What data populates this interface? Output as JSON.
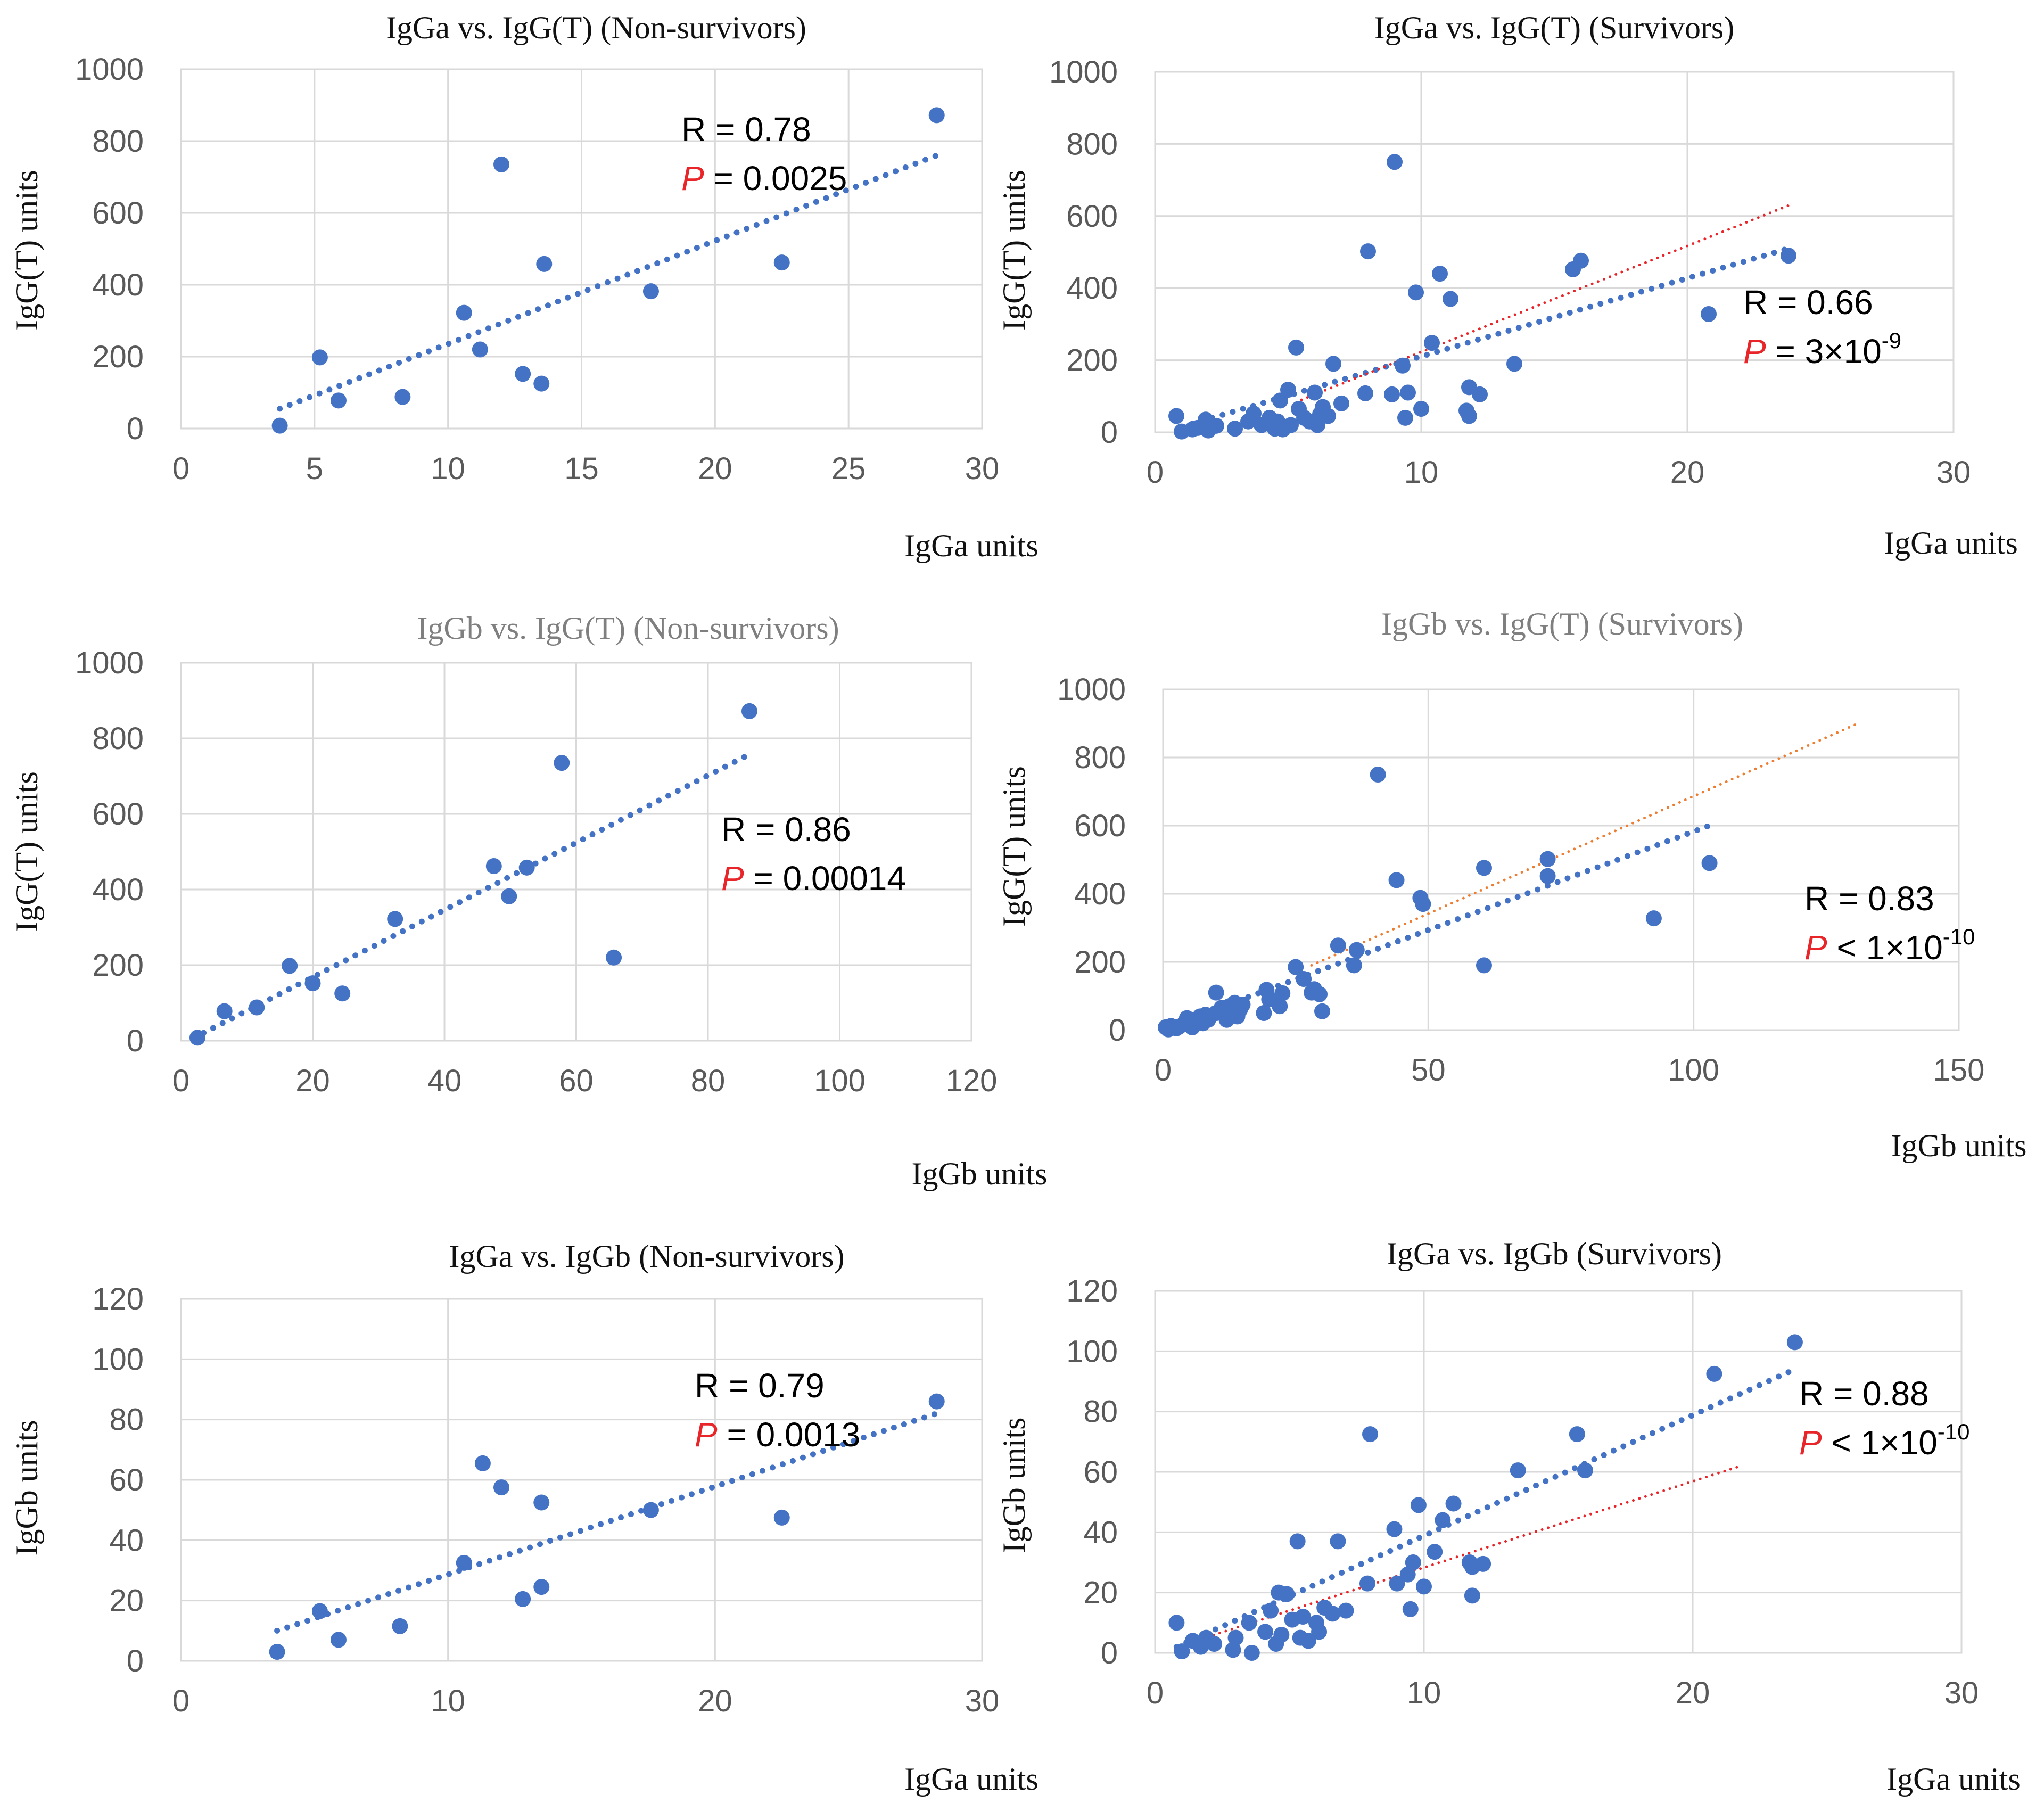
{
  "colors": {
    "point": "#4472C4",
    "trend": "#4472C4",
    "ref_red": "#E8262A",
    "ref_orange": "#ED7D31",
    "grid": "#D9D9D9",
    "tick_text": "#595959",
    "title_text": "#111111",
    "title_gray": "#7F7F7F",
    "p_red": "#E8262A"
  },
  "chart_data": [
    {
      "type": "scatter",
      "title": "IgGa vs. IgG(T) (Non-survivors)",
      "title_style": "dark",
      "xlabel": "IgGa units",
      "ylabel": "IgG(T) units",
      "xlim": [
        0,
        30
      ],
      "ylim": [
        0,
        1000
      ],
      "xticks": [
        0,
        5,
        10,
        15,
        20,
        25,
        30
      ],
      "yticks": [
        0,
        200,
        400,
        600,
        800,
        1000
      ],
      "points": [
        [
          3.7,
          8
        ],
        [
          5.2,
          198
        ],
        [
          5.9,
          78
        ],
        [
          8.3,
          88
        ],
        [
          10.6,
          322
        ],
        [
          11.2,
          220
        ],
        [
          12.0,
          735
        ],
        [
          12.8,
          152
        ],
        [
          13.5,
          125
        ],
        [
          13.6,
          458
        ],
        [
          17.6,
          382
        ],
        [
          22.5,
          462
        ],
        [
          28.3,
          872
        ]
      ],
      "trendlines": [
        {
          "kind": "fit",
          "x": [
            3.7,
            28.3
          ],
          "y": [
            55,
            760
          ],
          "color": "trend"
        }
      ],
      "annotation": {
        "r": "R = 0.78",
        "p_symbol": "P",
        "p_text": " = 0.0025",
        "p_exp": "",
        "placement": "upper-middle"
      }
    },
    {
      "type": "scatter",
      "title": "IgGa vs. IgG(T) (Survivors)",
      "title_style": "dark",
      "xlabel": "IgGa units",
      "ylabel": "IgG(T) units",
      "xlim": [
        0,
        30
      ],
      "ylim": [
        0,
        1000
      ],
      "xticks": [
        0,
        10,
        20,
        30
      ],
      "yticks": [
        0,
        200,
        400,
        600,
        800,
        1000
      ],
      "points": [
        [
          0.8,
          45
        ],
        [
          1.0,
          2
        ],
        [
          1.4,
          8
        ],
        [
          1.6,
          12
        ],
        [
          1.9,
          35
        ],
        [
          2.0,
          5
        ],
        [
          2.3,
          18
        ],
        [
          3.0,
          10
        ],
        [
          3.5,
          30
        ],
        [
          3.7,
          52
        ],
        [
          4.0,
          20
        ],
        [
          4.3,
          40
        ],
        [
          4.5,
          10
        ],
        [
          4.6,
          30
        ],
        [
          4.7,
          88
        ],
        [
          4.8,
          8
        ],
        [
          5.0,
          118
        ],
        [
          5.1,
          20
        ],
        [
          5.3,
          235
        ],
        [
          5.4,
          65
        ],
        [
          5.6,
          40
        ],
        [
          5.8,
          30
        ],
        [
          6.0,
          110
        ],
        [
          6.1,
          20
        ],
        [
          6.2,
          50
        ],
        [
          6.3,
          70
        ],
        [
          6.5,
          45
        ],
        [
          6.7,
          190
        ],
        [
          7.0,
          80
        ],
        [
          7.9,
          108
        ],
        [
          8.0,
          502
        ],
        [
          8.9,
          105
        ],
        [
          9.0,
          750
        ],
        [
          9.3,
          185
        ],
        [
          9.4,
          40
        ],
        [
          9.5,
          110
        ],
        [
          9.8,
          388
        ],
        [
          10.0,
          65
        ],
        [
          10.4,
          248
        ],
        [
          10.7,
          440
        ],
        [
          11.1,
          370
        ],
        [
          11.7,
          60
        ],
        [
          11.8,
          125
        ],
        [
          11.8,
          45
        ],
        [
          12.2,
          105
        ],
        [
          13.5,
          190
        ],
        [
          15.7,
          452
        ],
        [
          16.0,
          476
        ],
        [
          20.8,
          328
        ],
        [
          23.8,
          490
        ]
      ],
      "trendlines": [
        {
          "kind": "fit",
          "x": [
            1.0,
            23.8
          ],
          "y": [
            15,
            510
          ],
          "color": "trend"
        },
        {
          "kind": "reference",
          "x": [
            5.5,
            24.0
          ],
          "y": [
            90,
            635
          ],
          "color": "ref_red"
        }
      ],
      "annotation": {
        "r": "R = 0.66",
        "p_symbol": "P",
        "p_text": " = 3×10",
        "p_exp": "-9",
        "placement": "right"
      }
    },
    {
      "type": "scatter",
      "title": "IgGb vs. IgG(T) (Non-survivors)",
      "title_style": "gray",
      "xlabel": "IgGb units",
      "ylabel": "IgG(T) units",
      "xlim": [
        0,
        120
      ],
      "ylim": [
        0,
        1000
      ],
      "xticks": [
        0,
        20,
        40,
        60,
        80,
        100,
        120
      ],
      "yticks": [
        0,
        200,
        400,
        600,
        800,
        1000
      ],
      "points": [
        [
          2.5,
          8
        ],
        [
          6.6,
          78
        ],
        [
          11.5,
          88
        ],
        [
          16.5,
          198
        ],
        [
          20.0,
          152
        ],
        [
          24.5,
          125
        ],
        [
          32.5,
          322
        ],
        [
          47.5,
          462
        ],
        [
          49.8,
          382
        ],
        [
          52.5,
          458
        ],
        [
          57.8,
          735
        ],
        [
          65.7,
          220
        ],
        [
          86.3,
          872
        ]
      ],
      "trendlines": [
        {
          "kind": "fit",
          "x": [
            2.0,
            86.0
          ],
          "y": [
            8,
            755
          ],
          "color": "trend"
        }
      ],
      "annotation": {
        "r": "R = 0.86",
        "p_symbol": "P",
        "p_text": " = 0.00014",
        "p_exp": "",
        "placement": "right"
      }
    },
    {
      "type": "scatter",
      "title": "IgGb vs. IgG(T) (Survivors)",
      "title_style": "gray",
      "xlabel": "IgGb units",
      "ylabel": "IgG(T) units",
      "xlim": [
        0,
        150
      ],
      "ylim": [
        0,
        1000
      ],
      "xticks": [
        0,
        50,
        100,
        150
      ],
      "yticks": [
        0,
        200,
        400,
        600,
        800,
        1000
      ],
      "points": [
        [
          0.5,
          8
        ],
        [
          1.0,
          2
        ],
        [
          1.5,
          12
        ],
        [
          2.5,
          5
        ],
        [
          3.0,
          10
        ],
        [
          4.0,
          18
        ],
        [
          4.5,
          35
        ],
        [
          5.0,
          20
        ],
        [
          5.5,
          8
        ],
        [
          6.0,
          30
        ],
        [
          7.0,
          40
        ],
        [
          7.5,
          20
        ],
        [
          8.0,
          45
        ],
        [
          8.5,
          30
        ],
        [
          10.0,
          110
        ],
        [
          10.0,
          50
        ],
        [
          11.0,
          65
        ],
        [
          11.5,
          45
        ],
        [
          12.0,
          30
        ],
        [
          12.5,
          70
        ],
        [
          13.0,
          55
        ],
        [
          13.5,
          80
        ],
        [
          14.0,
          40
        ],
        [
          14.5,
          60
        ],
        [
          15.0,
          75
        ],
        [
          19.0,
          50
        ],
        [
          19.5,
          118
        ],
        [
          20.0,
          90
        ],
        [
          22.0,
          70
        ],
        [
          22.5,
          108
        ],
        [
          25.0,
          185
        ],
        [
          26.5,
          150
        ],
        [
          28.0,
          110
        ],
        [
          28.5,
          120
        ],
        [
          29.5,
          105
        ],
        [
          30.0,
          55
        ],
        [
          33.0,
          248
        ],
        [
          36.0,
          190
        ],
        [
          36.5,
          235
        ],
        [
          40.5,
          750
        ],
        [
          44.0,
          440
        ],
        [
          48.5,
          388
        ],
        [
          49.0,
          370
        ],
        [
          60.5,
          476
        ],
        [
          60.5,
          190
        ],
        [
          72.5,
          502
        ],
        [
          72.5,
          452
        ],
        [
          92.5,
          328
        ],
        [
          103.0,
          490
        ]
      ],
      "trendlines": [
        {
          "kind": "fit",
          "x": [
            1.0,
            103.0
          ],
          "y": [
            10,
            600
          ],
          "color": "trend"
        },
        {
          "kind": "reference",
          "x": [
            28.0,
            131.0
          ],
          "y": [
            190,
            900
          ],
          "color": "ref_orange"
        }
      ],
      "annotation": {
        "r": "R = 0.83",
        "p_symbol": "P",
        "p_text": " < 1×10",
        "p_exp": "-10",
        "placement": "right"
      }
    },
    {
      "type": "scatter",
      "title": "IgGa vs. IgGb (Non-survivors)",
      "title_style": "dark",
      "xlabel": "IgGa units",
      "ylabel": "IgGb units",
      "xlim": [
        0,
        30
      ],
      "ylim": [
        0,
        120
      ],
      "xticks": [
        0,
        10,
        20,
        30
      ],
      "yticks": [
        0,
        20,
        40,
        60,
        80,
        100,
        120
      ],
      "points": [
        [
          3.6,
          3
        ],
        [
          5.2,
          16.5
        ],
        [
          5.9,
          7
        ],
        [
          8.2,
          11.5
        ],
        [
          10.6,
          32.5
        ],
        [
          11.3,
          65.5
        ],
        [
          12.0,
          57.5
        ],
        [
          12.8,
          20.5
        ],
        [
          13.5,
          52.5
        ],
        [
          13.5,
          24.5
        ],
        [
          17.6,
          50
        ],
        [
          22.5,
          47.5
        ],
        [
          28.3,
          86
        ]
      ],
      "trendlines": [
        {
          "kind": "fit",
          "x": [
            3.6,
            28.3
          ],
          "y": [
            10,
            82
          ],
          "color": "trend"
        }
      ],
      "annotation": {
        "r": "R = 0.79",
        "p_symbol": "P",
        "p_text": " = 0.0013",
        "p_exp": "",
        "placement": "upper-middle"
      }
    },
    {
      "type": "scatter",
      "title": "IgGa vs. IgGb (Survivors)",
      "title_style": "dark",
      "xlabel": "IgGa units",
      "ylabel": "IgGb units",
      "xlim": [
        0,
        30
      ],
      "ylim": [
        0,
        120
      ],
      "xticks": [
        0,
        10,
        20,
        30
      ],
      "yticks": [
        0,
        20,
        40,
        60,
        80,
        100,
        120
      ],
      "points": [
        [
          0.8,
          10
        ],
        [
          1.0,
          0.5
        ],
        [
          1.4,
          4
        ],
        [
          1.7,
          2
        ],
        [
          1.9,
          5
        ],
        [
          2.2,
          3
        ],
        [
          2.9,
          1
        ],
        [
          3.0,
          5
        ],
        [
          3.5,
          10
        ],
        [
          3.6,
          0
        ],
        [
          4.1,
          7
        ],
        [
          4.3,
          14
        ],
        [
          4.5,
          3
        ],
        [
          4.6,
          20
        ],
        [
          4.7,
          6
        ],
        [
          4.9,
          19.5
        ],
        [
          5.1,
          11
        ],
        [
          5.3,
          37
        ],
        [
          5.4,
          5
        ],
        [
          5.5,
          12
        ],
        [
          5.7,
          4
        ],
        [
          6.0,
          10
        ],
        [
          6.1,
          7
        ],
        [
          6.3,
          15
        ],
        [
          6.6,
          13
        ],
        [
          6.8,
          37
        ],
        [
          7.1,
          14
        ],
        [
          7.9,
          23
        ],
        [
          8.0,
          72.5
        ],
        [
          8.9,
          41
        ],
        [
          9.0,
          23
        ],
        [
          9.4,
          26
        ],
        [
          9.5,
          14.5
        ],
        [
          9.6,
          30
        ],
        [
          9.8,
          49
        ],
        [
          10.0,
          22
        ],
        [
          10.4,
          33.5
        ],
        [
          10.7,
          44
        ],
        [
          11.1,
          49.5
        ],
        [
          11.7,
          30
        ],
        [
          11.8,
          19
        ],
        [
          11.8,
          28.5
        ],
        [
          12.2,
          29.5
        ],
        [
          13.5,
          60.5
        ],
        [
          15.7,
          72.5
        ],
        [
          16.0,
          60.5
        ],
        [
          20.8,
          92.5
        ],
        [
          23.8,
          103
        ]
      ],
      "trendlines": [
        {
          "kind": "fit",
          "x": [
            0.8,
            23.8
          ],
          "y": [
            2,
            94
          ],
          "color": "trend"
        },
        {
          "kind": "reference",
          "x": [
            1.5,
            21.8
          ],
          "y": [
            4,
            62
          ],
          "color": "ref_red"
        }
      ],
      "annotation": {
        "r": "R = 0.88",
        "p_symbol": "P",
        "p_text": " < 1×10",
        "p_exp": "-10",
        "placement": "right"
      }
    }
  ]
}
